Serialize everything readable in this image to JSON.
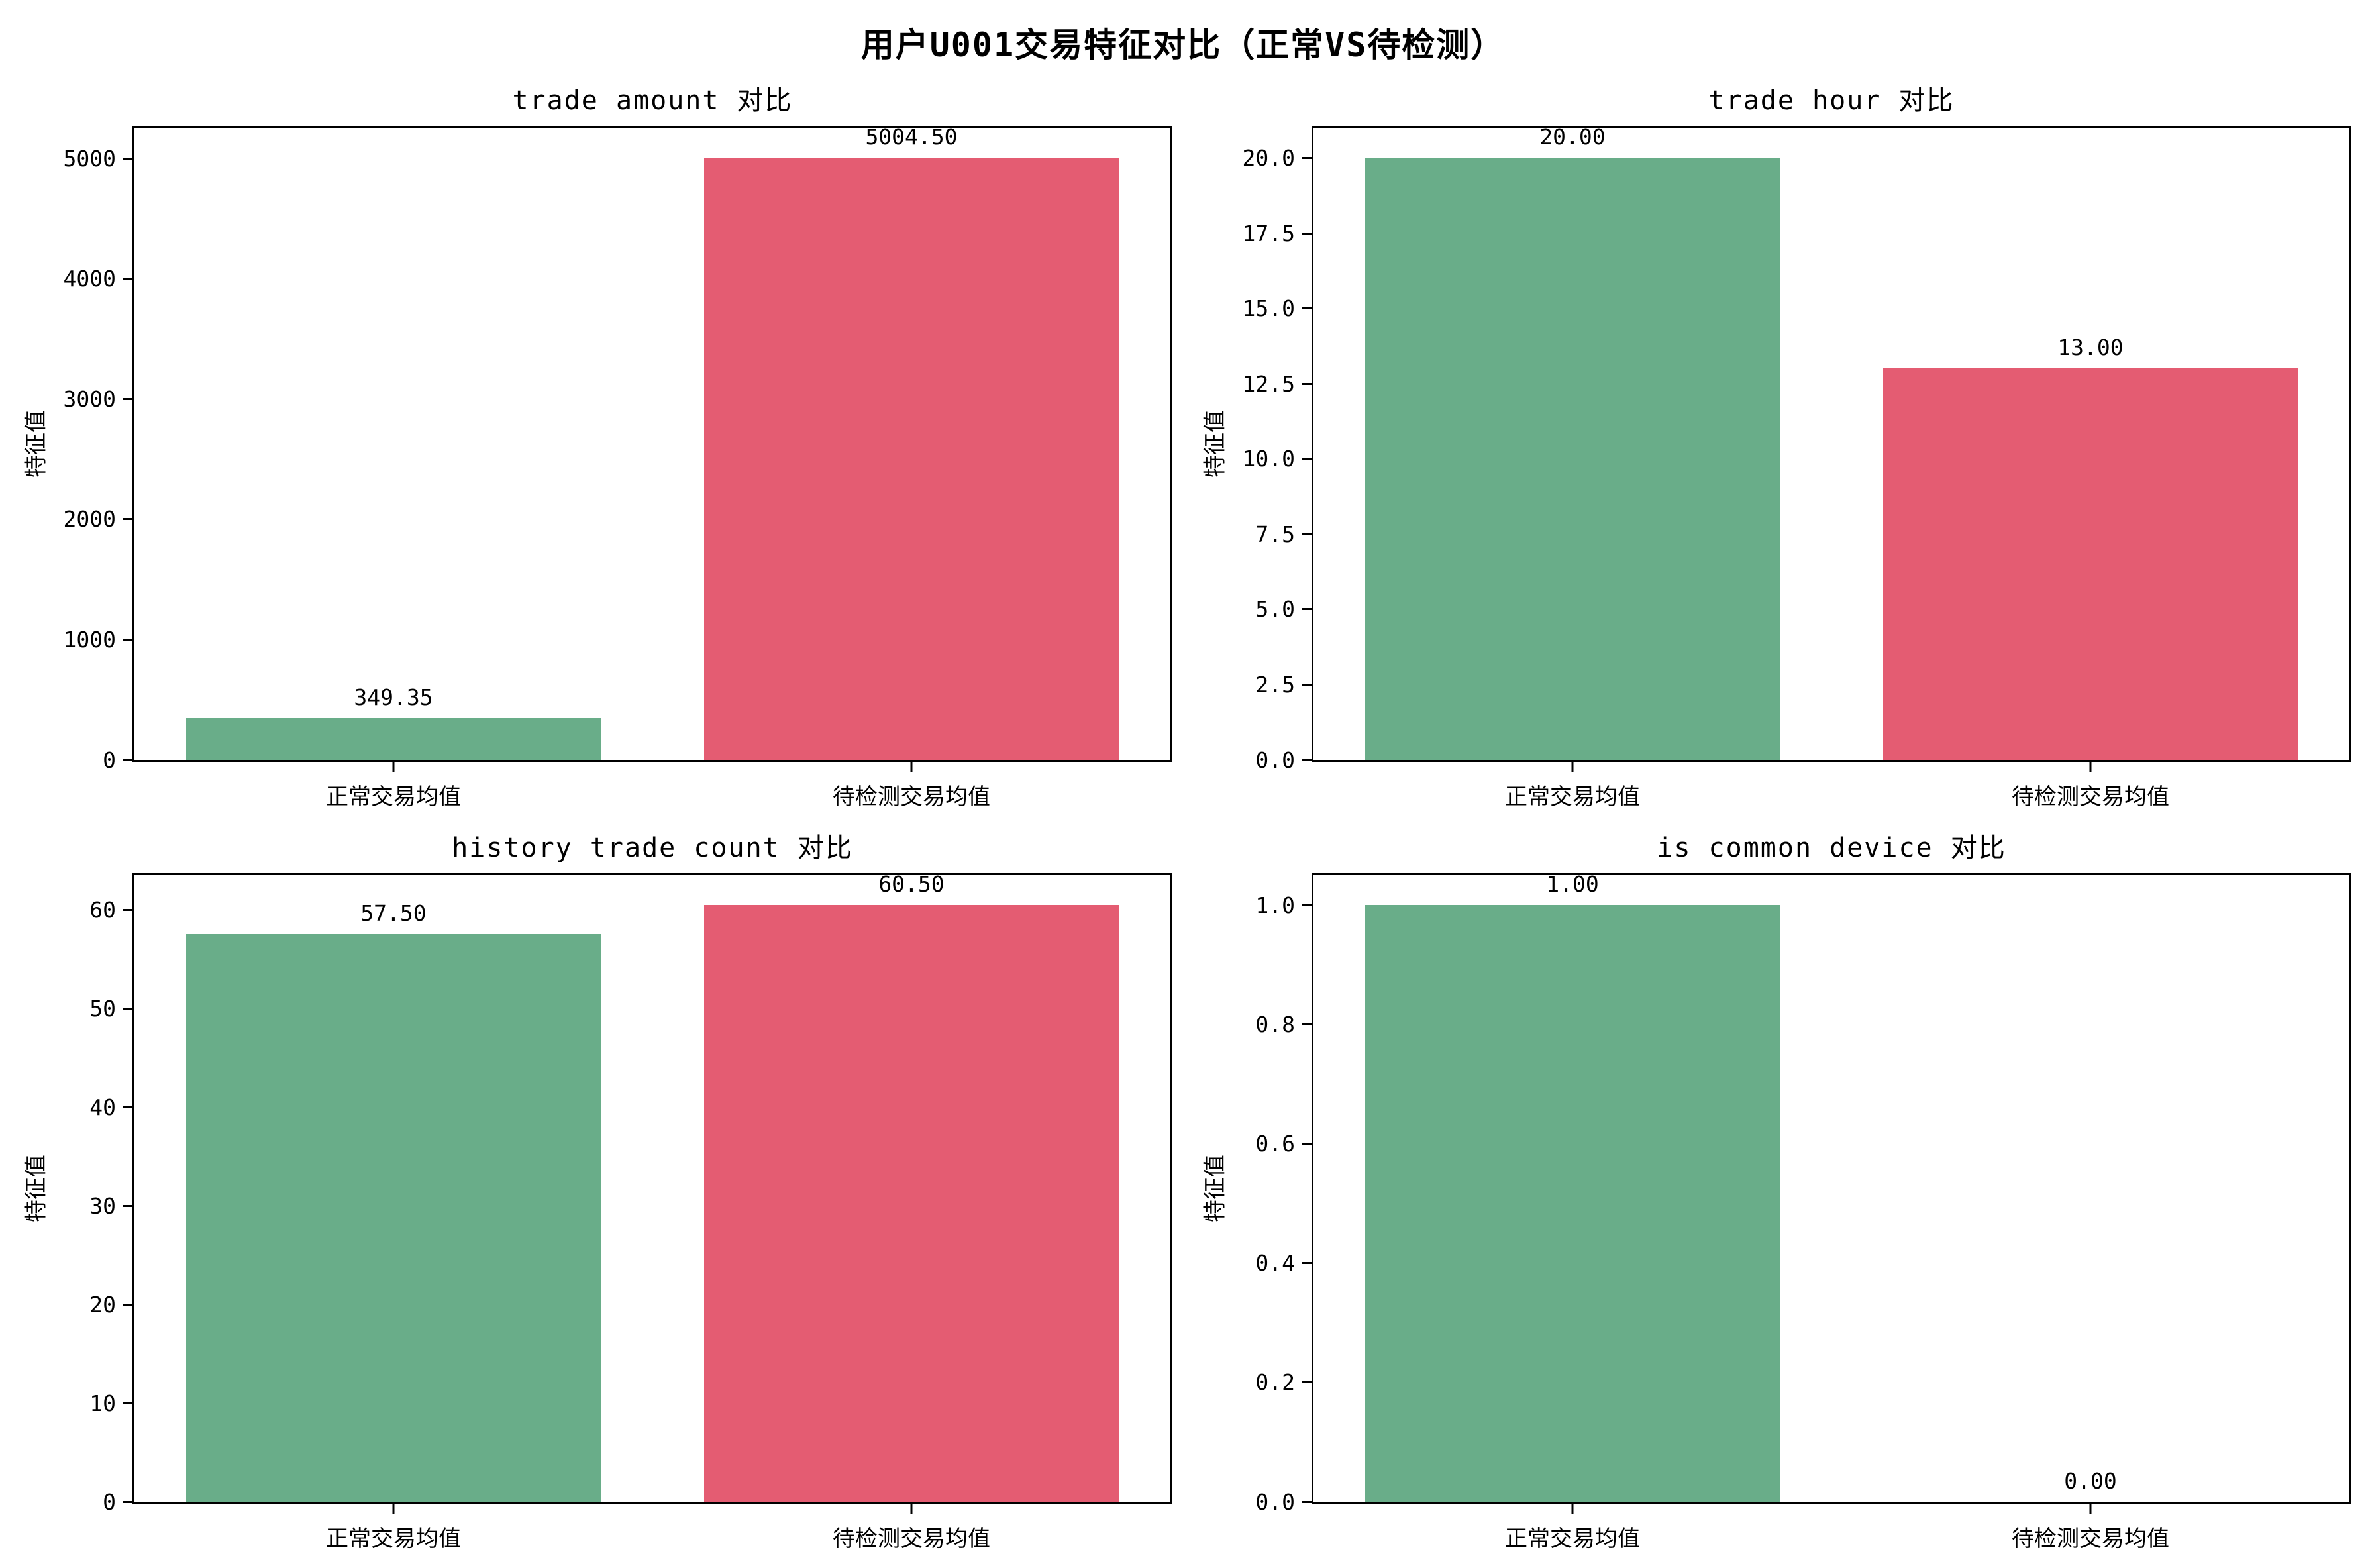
{
  "figure": {
    "title": "用户U001交易特征对比（正常VS待检测）"
  },
  "colors": {
    "normal_bar": "#69ad89",
    "detect_bar": "#e45c72",
    "axis": "#000000",
    "background": "#ffffff"
  },
  "chart_data": [
    {
      "type": "bar",
      "title": "trade amount 对比",
      "categories": [
        "正常交易均值",
        "待检测交易均值"
      ],
      "values": [
        349.35,
        5004.5
      ],
      "value_labels": [
        "349.35",
        "5004.50"
      ],
      "ylabel": "特征值",
      "ylim": [
        0,
        5254.7
      ],
      "yticks": [
        0,
        1000,
        2000,
        3000,
        4000,
        5000
      ],
      "ytick_labels": [
        "0",
        "1000",
        "2000",
        "3000",
        "4000",
        "5000"
      ],
      "grid": false,
      "legend": false
    },
    {
      "type": "bar",
      "title": "trade hour 对比",
      "categories": [
        "正常交易均值",
        "待检测交易均值"
      ],
      "values": [
        20.0,
        13.0
      ],
      "value_labels": [
        "20.00",
        "13.00"
      ],
      "ylabel": "特征值",
      "ylim": [
        0,
        21.0
      ],
      "yticks": [
        0,
        2.5,
        5.0,
        7.5,
        10.0,
        12.5,
        15.0,
        17.5,
        20.0
      ],
      "ytick_labels": [
        "0.0",
        "2.5",
        "5.0",
        "7.5",
        "10.0",
        "12.5",
        "15.0",
        "17.5",
        "20.0"
      ],
      "grid": false,
      "legend": false
    },
    {
      "type": "bar",
      "title": "history trade count 对比",
      "categories": [
        "正常交易均值",
        "待检测交易均值"
      ],
      "values": [
        57.5,
        60.5
      ],
      "value_labels": [
        "57.50",
        "60.50"
      ],
      "ylabel": "特征值",
      "ylim": [
        0,
        63.5
      ],
      "yticks": [
        0,
        10,
        20,
        30,
        40,
        50,
        60
      ],
      "ytick_labels": [
        "0",
        "10",
        "20",
        "30",
        "40",
        "50",
        "60"
      ],
      "grid": false,
      "legend": false
    },
    {
      "type": "bar",
      "title": "is common device 对比",
      "categories": [
        "正常交易均值",
        "待检测交易均值"
      ],
      "values": [
        1.0,
        0.0
      ],
      "value_labels": [
        "1.00",
        "0.00"
      ],
      "ylabel": "特征值",
      "ylim": [
        0,
        1.05
      ],
      "yticks": [
        0,
        0.2,
        0.4,
        0.6,
        0.8,
        1.0
      ],
      "ytick_labels": [
        "0.0",
        "0.2",
        "0.4",
        "0.6",
        "0.8",
        "1.0"
      ],
      "grid": false,
      "legend": false
    }
  ]
}
